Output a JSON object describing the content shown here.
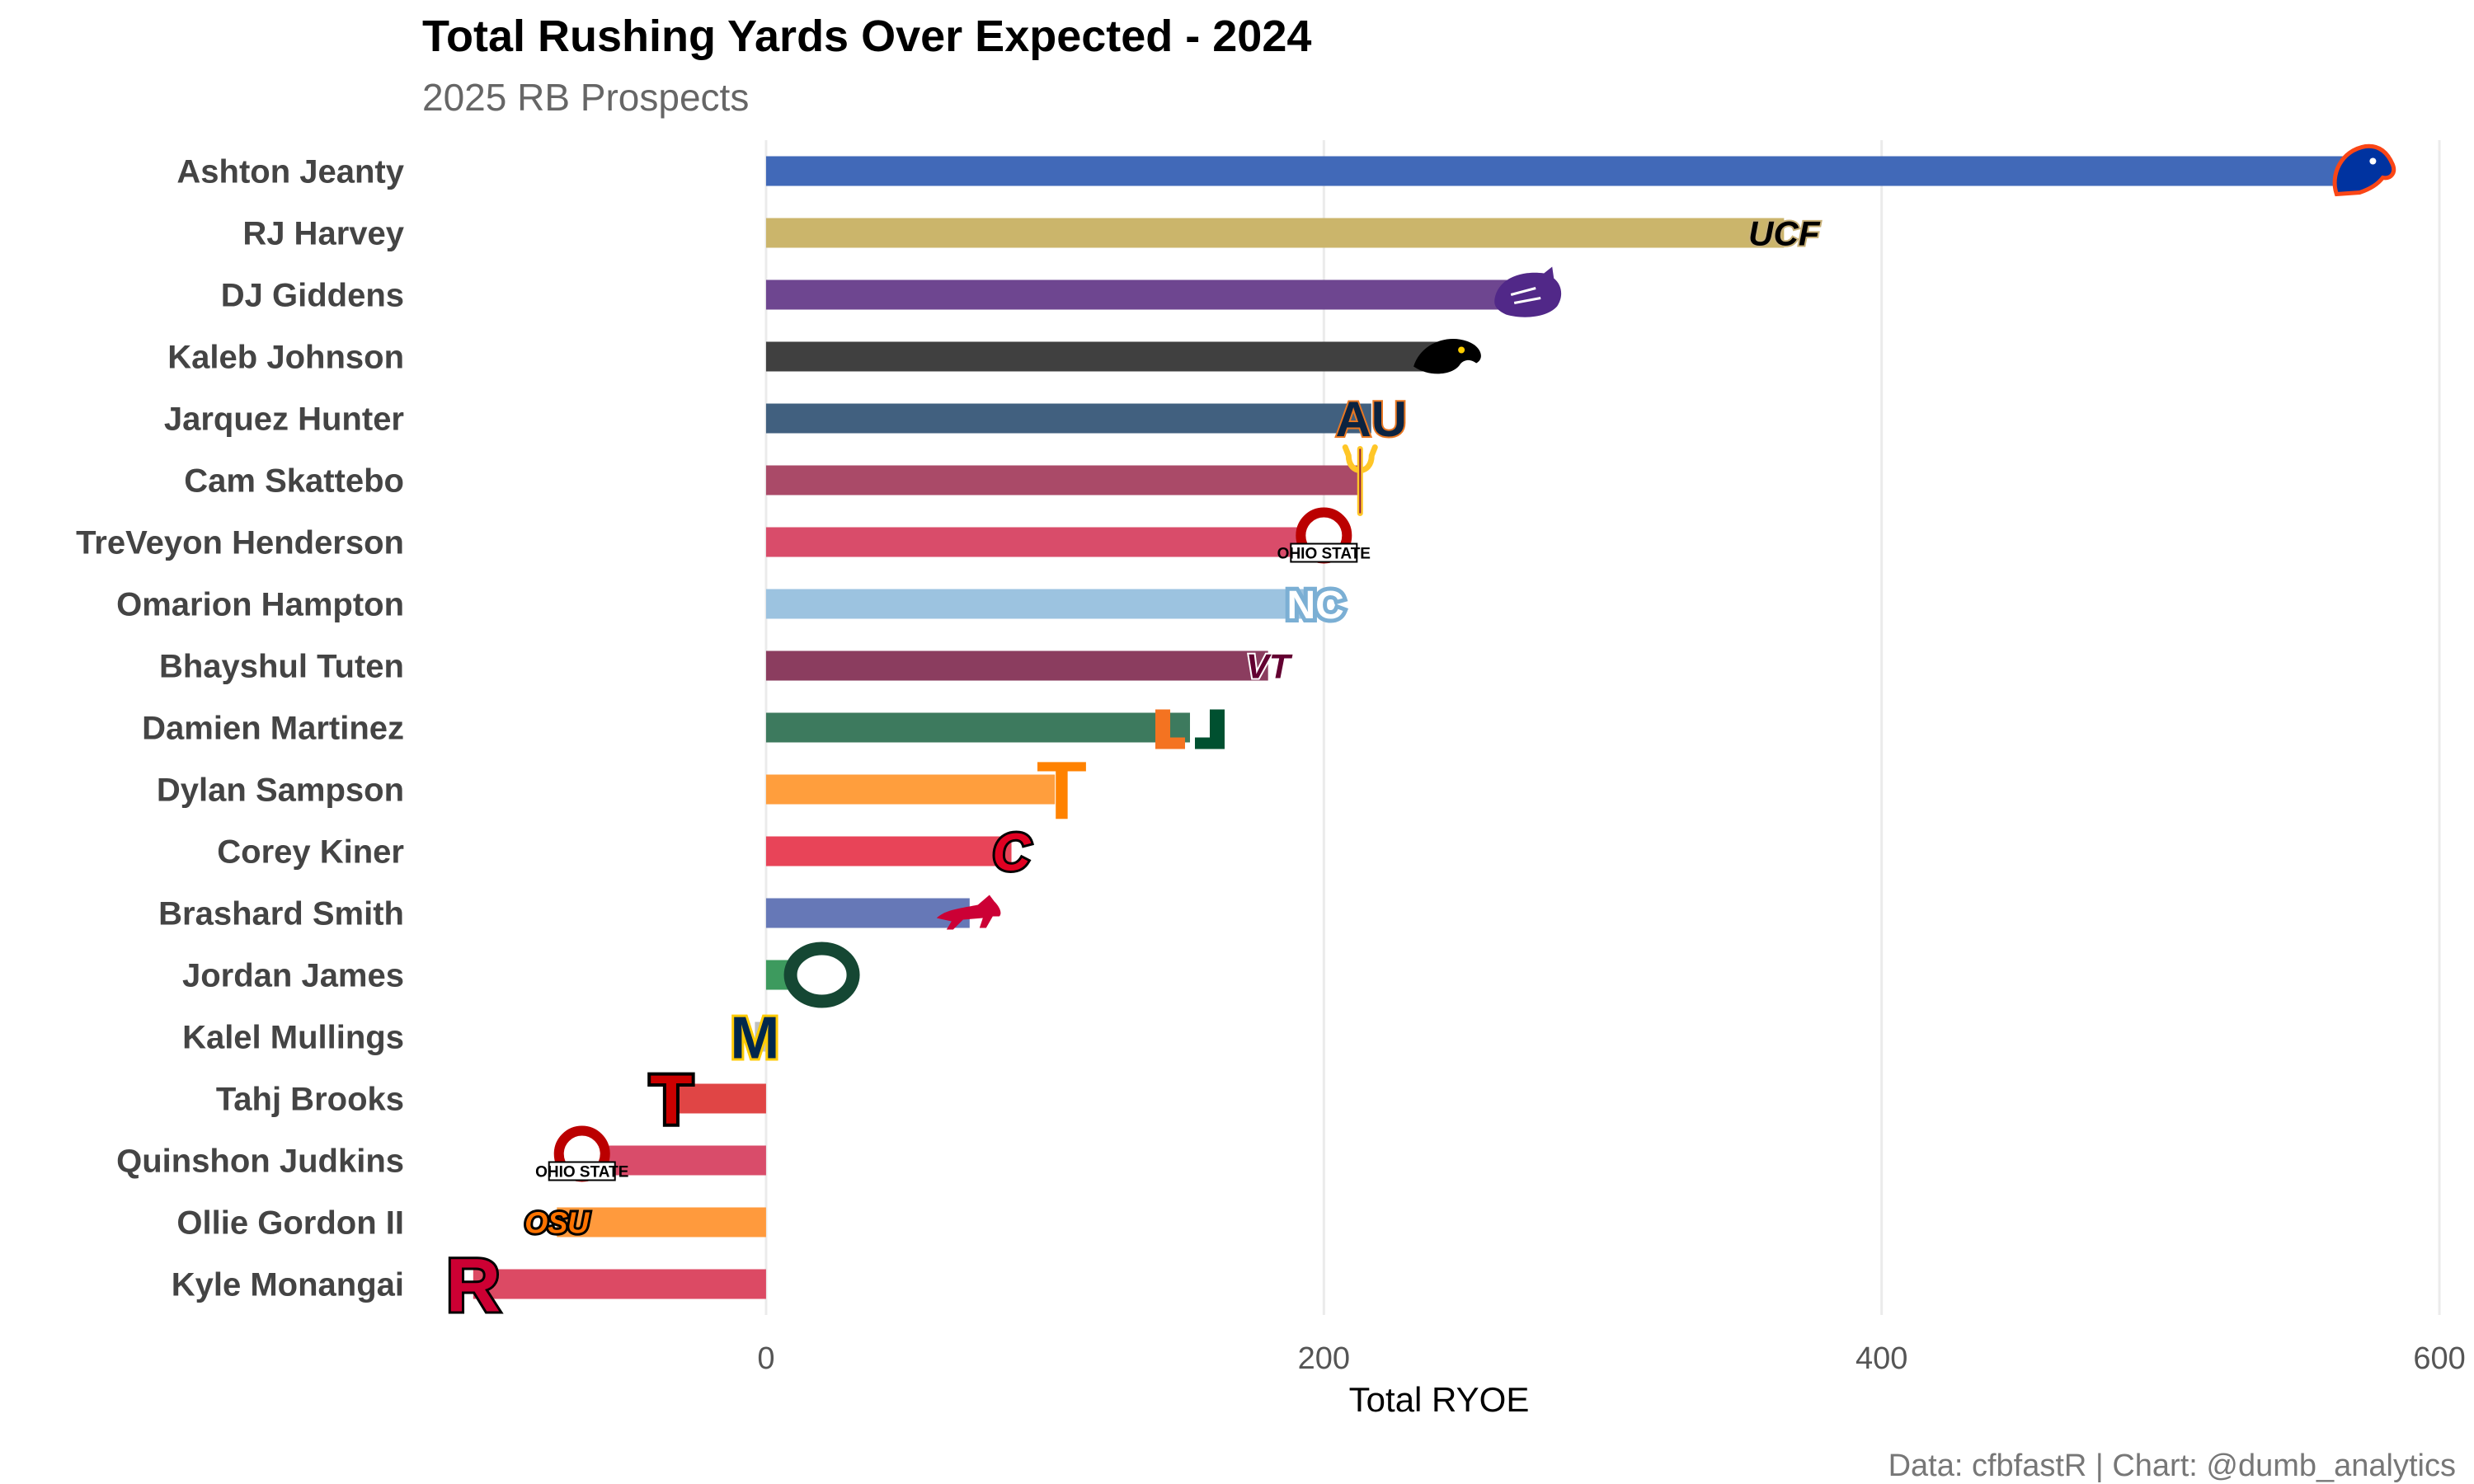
{
  "chart_data": {
    "type": "bar",
    "orientation": "horizontal",
    "title": "Total Rushing Yards Over Expected - 2024",
    "subtitle": "2025 RB Prospects",
    "xlabel": "Total RYOE",
    "caption": "Data: cfbfastR | Chart: @dumb_analytics",
    "xlim": [
      -115,
      605
    ],
    "xticks": [
      0,
      200,
      400,
      600
    ],
    "grid": true,
    "categories": [
      "Ashton Jeanty",
      "RJ Harvey",
      "DJ Giddens",
      "Kaleb Johnson",
      "Jarquez Hunter",
      "Cam Skattebo",
      "TreVeyon Henderson",
      "Omarion Hampton",
      "Bhayshul Tuten",
      "Damien Martinez",
      "Dylan Sampson",
      "Corey Kiner",
      "Brashard Smith",
      "Jordan James",
      "Kalel Mullings",
      "Tahj Brooks",
      "Quinshon Judkins",
      "Ollie Gordon II",
      "Kyle Monangai"
    ],
    "values": [
      572,
      365,
      273,
      244,
      217,
      213,
      200,
      197,
      180,
      152,
      106,
      88,
      73,
      20,
      -4,
      -34,
      -66,
      -75,
      -105
    ],
    "bar_colors": [
      "#4169b8",
      "#cbb56b",
      "#6e4690",
      "#404040",
      "#41607f",
      "#aa4a68",
      "#d94c6a",
      "#9cc3e0",
      "#8b3d5f",
      "#3d7a5e",
      "#ff9e3d",
      "#e84458",
      "#6678b7",
      "#3d9a5e",
      "#c0c0c0",
      "#e04545",
      "#d94c6a",
      "#ff9a3d",
      "#dc4a64"
    ],
    "logos": [
      {
        "icon": "bronco-head-icon",
        "color": "#0033a0"
      },
      {
        "icon": "ucf-logo-icon",
        "color": "#000000",
        "text": "UCF"
      },
      {
        "icon": "wildcat-head-icon",
        "color": "#512888"
      },
      {
        "icon": "hawkeye-icon",
        "color": "#000000"
      },
      {
        "icon": "auburn-logo-icon",
        "color": "#0c2340",
        "text": "AU"
      },
      {
        "icon": "pitchfork-icon",
        "color": "#8c1d40"
      },
      {
        "icon": "ohio-state-logo-icon",
        "color": "#bb0000",
        "text": "OHIO STATE"
      },
      {
        "icon": "nc-logo-icon",
        "color": "#7bafd4",
        "text": "NC"
      },
      {
        "icon": "vt-logo-icon",
        "color": "#630031",
        "text": "VT"
      },
      {
        "icon": "miami-u-logo-icon",
        "color": "#f47321",
        "text": "U"
      },
      {
        "icon": "tennessee-t-logo-icon",
        "color": "#ff8200",
        "text": "T"
      },
      {
        "icon": "cincinnati-c-logo-icon",
        "color": "#e00122",
        "text": "C"
      },
      {
        "icon": "mustang-icon",
        "color": "#cc0035"
      },
      {
        "icon": "oregon-o-logo-icon",
        "color": "#154733",
        "text": "O"
      },
      {
        "icon": "michigan-m-logo-icon",
        "color": "#00274c",
        "text": "M"
      },
      {
        "icon": "texas-tech-logo-icon",
        "color": "#cc0000",
        "text": "T"
      },
      {
        "icon": "ohio-state-logo-icon",
        "color": "#bb0000",
        "text": "OHIO STATE"
      },
      {
        "icon": "osu-logo-icon",
        "color": "#ff7300",
        "text": "OSU"
      },
      {
        "icon": "rutgers-r-logo-icon",
        "color": "#cc0033",
        "text": "R"
      }
    ]
  }
}
